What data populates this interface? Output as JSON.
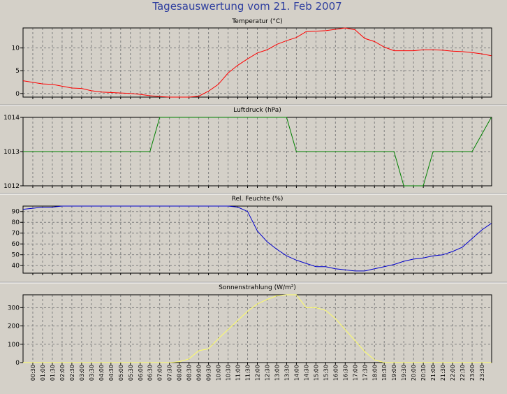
{
  "title": "Tagesauswertung vom 21. Feb 2007",
  "colors": {
    "background": "#d4d0c8",
    "temperature": "#ff0000",
    "pressure": "#008000",
    "humidity": "#0000cc",
    "radiation": "#ffff66",
    "grid": "#808080",
    "title": "#2f3f9f"
  },
  "chart_data": [
    {
      "type": "line",
      "title": "Temperatur (°C)",
      "ylim": [
        -0.8,
        14.4
      ],
      "yticks": [
        0,
        5,
        10
      ],
      "grid": true,
      "series": [
        {
          "color": "#ff0000",
          "x": [
            "00:00",
            "01:00",
            "01:30",
            "02:00",
            "02:30",
            "03:00",
            "03:30",
            "04:00",
            "05:00",
            "05:30",
            "06:00",
            "06:30",
            "07:00",
            "07:30",
            "08:00",
            "08:30",
            "09:00",
            "09:30",
            "10:00",
            "10:30",
            "11:00",
            "11:30",
            "12:00",
            "12:30",
            "13:00",
            "13:30",
            "14:00",
            "14:30",
            "15:00",
            "15:30",
            "16:00",
            "16:30",
            "17:00",
            "17:30",
            "18:00",
            "18:30",
            "19:00",
            "19:30",
            "20:00",
            "20:30",
            "21:00",
            "21:30",
            "22:00",
            "22:30",
            "23:00",
            "23:30",
            "23:59"
          ],
          "values": [
            2.8,
            2.1,
            2.0,
            1.6,
            1.2,
            1.1,
            0.6,
            0.3,
            0.1,
            0.0,
            -0.2,
            -0.5,
            -0.7,
            -0.8,
            -0.8,
            -0.8,
            -0.6,
            0.5,
            2.0,
            4.5,
            6.2,
            7.6,
            8.9,
            9.6,
            10.8,
            11.6,
            12.3,
            13.6,
            13.7,
            13.8,
            14.1,
            14.4,
            14.0,
            12.1,
            11.4,
            10.2,
            9.4,
            9.4,
            9.4,
            9.6,
            9.6,
            9.5,
            9.3,
            9.2,
            9.0,
            8.7,
            8.3
          ]
        }
      ]
    },
    {
      "type": "line",
      "title": "Luftdruck (hPa)",
      "ylim": [
        1012,
        1014
      ],
      "yticks": [
        1012,
        1013,
        1014
      ],
      "grid": true,
      "series": [
        {
          "color": "#008000",
          "x": [
            "00:00",
            "06:30",
            "07:00",
            "13:30",
            "14:00",
            "19:00",
            "19:30",
            "20:30",
            "21:00",
            "23:00",
            "23:59"
          ],
          "values": [
            1013,
            1013,
            1014,
            1014,
            1013,
            1013,
            1012,
            1012,
            1013,
            1013,
            1014
          ]
        }
      ]
    },
    {
      "type": "line",
      "title": "Rel. Feuchte (%)",
      "ylim": [
        33,
        95
      ],
      "yticks": [
        40,
        50,
        60,
        70,
        80,
        90
      ],
      "grid": true,
      "series": [
        {
          "color": "#0000cc",
          "x": [
            "00:00",
            "00:30",
            "01:00",
            "01:30",
            "02:00",
            "02:30",
            "10:30",
            "11:00",
            "11:30",
            "12:00",
            "12:30",
            "13:00",
            "13:30",
            "14:00",
            "14:30",
            "15:00",
            "15:30",
            "16:00",
            "17:00",
            "17:30",
            "18:00",
            "18:30",
            "19:00",
            "19:30",
            "20:00",
            "20:30",
            "21:00",
            "21:30",
            "22:00",
            "22:30",
            "23:00",
            "23:30",
            "23:59"
          ],
          "values": [
            92,
            93,
            94,
            94,
            95,
            95,
            95,
            94,
            90,
            72,
            62,
            55,
            49,
            45,
            42,
            39,
            39,
            37,
            35,
            35,
            37,
            39,
            41,
            44,
            46,
            47,
            49,
            50,
            53,
            57,
            65,
            73,
            79
          ]
        }
      ]
    },
    {
      "type": "line",
      "title": "Sonnenstrahlung (W/m²)",
      "ylim": [
        0,
        370
      ],
      "yticks": [
        0,
        100,
        200,
        300
      ],
      "grid": true,
      "series": [
        {
          "color": "#ffff66",
          "x": [
            "00:00",
            "07:30",
            "08:00",
            "08:30",
            "09:00",
            "09:30",
            "10:00",
            "10:30",
            "11:00",
            "11:30",
            "12:00",
            "12:30",
            "13:00",
            "13:30",
            "14:00",
            "14:30",
            "15:00",
            "15:30",
            "16:00",
            "16:30",
            "17:00",
            "17:30",
            "18:00",
            "18:30",
            "23:59"
          ],
          "values": [
            0,
            0,
            5,
            20,
            65,
            75,
            130,
            180,
            230,
            280,
            320,
            345,
            365,
            370,
            370,
            300,
            300,
            285,
            240,
            180,
            120,
            60,
            15,
            0,
            0
          ]
        }
      ]
    }
  ],
  "xticks": [
    "00:30",
    "01:00",
    "01:30",
    "02:00",
    "02:30",
    "03:00",
    "03:30",
    "04:00",
    "04:30",
    "05:00",
    "05:30",
    "06:00",
    "06:30",
    "07:00",
    "07:30",
    "08:00",
    "08:30",
    "09:00",
    "09:30",
    "10:00",
    "10:30",
    "11:00",
    "11:30",
    "12:00",
    "12:30",
    "13:00",
    "13:30",
    "14:00",
    "14:30",
    "15:00",
    "15:30",
    "16:00",
    "16:30",
    "17:00",
    "17:30",
    "18:00",
    "18:30",
    "19:00",
    "19:30",
    "20:00",
    "20:30",
    "21:00",
    "21:30",
    "22:00",
    "22:30",
    "23:00",
    "23:30"
  ]
}
